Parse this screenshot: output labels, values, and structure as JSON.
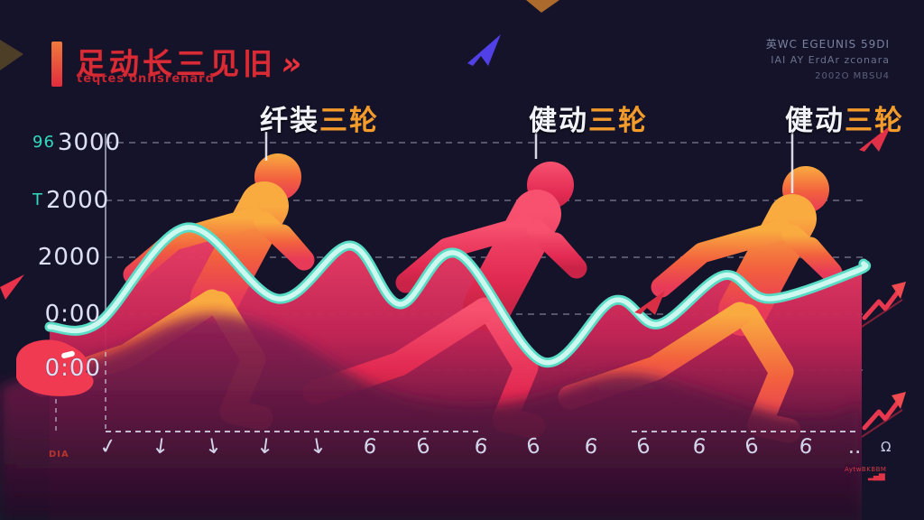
{
  "header": {
    "title": "足动长三见旧",
    "chevron": "»",
    "subtitle": "teqtes'onlisrenard",
    "top_right_lines": [
      "英WC EGEUNIS 59DI",
      "IAI AY ErdAr zconara",
      "2002O MBSU4"
    ]
  },
  "runner_labels": [
    {
      "white": "纤装",
      "orange": "三轮"
    },
    {
      "white": "健动",
      "orange": "三轮"
    },
    {
      "white": "健动",
      "orange": "三轮"
    }
  ],
  "chart_data": {
    "type": "line",
    "title": "足动长三见旧 (stylized running pace wave)",
    "grid": "dashed horizontal gridlines, dashed bottom axis",
    "legend_position": "none",
    "y_ticks": [
      {
        "prefix": "96",
        "label": "3000",
        "y": 158
      },
      {
        "prefix": "T",
        "label": "2000",
        "y": 222
      },
      {
        "prefix": "",
        "label": "2000",
        "y": 285
      },
      {
        "prefix": "",
        "label": "0:00",
        "y": 348
      },
      {
        "prefix": "",
        "label": "0:00",
        "y": 408
      }
    ],
    "x_ticks": [
      "✓",
      "↓",
      "↓",
      "↓",
      "↓",
      "6",
      "6",
      "6",
      "6",
      "6",
      "6",
      "6",
      "6",
      "6",
      ".."
    ],
    "series": [
      {
        "name": "pace-wave",
        "color": "#aef2e6",
        "points": [
          [
            55,
            362
          ],
          [
            110,
            357
          ],
          [
            207,
            252
          ],
          [
            308,
            331
          ],
          [
            388,
            272
          ],
          [
            443,
            337
          ],
          [
            507,
            281
          ],
          [
            602,
            401
          ],
          [
            680,
            333
          ],
          [
            730,
            359
          ],
          [
            802,
            305
          ],
          [
            853,
            331
          ],
          [
            950,
            300
          ],
          [
            957,
            292
          ]
        ]
      }
    ]
  },
  "footer": {
    "bottom_left": "DIA",
    "bottom_right_glyph": "Ω",
    "bottom_right_text": "AytwBKBBM"
  },
  "colors": {
    "background": "#151329",
    "title_red": "#d92b35",
    "label_orange": "#f39c2b",
    "wave_cyan": "#aef2e6",
    "runner_orange_top": "#f9ab40",
    "runner_pink": "#f7516f",
    "axis_text": "#dde0f2",
    "teal_glyph": "#2fd9bd"
  }
}
